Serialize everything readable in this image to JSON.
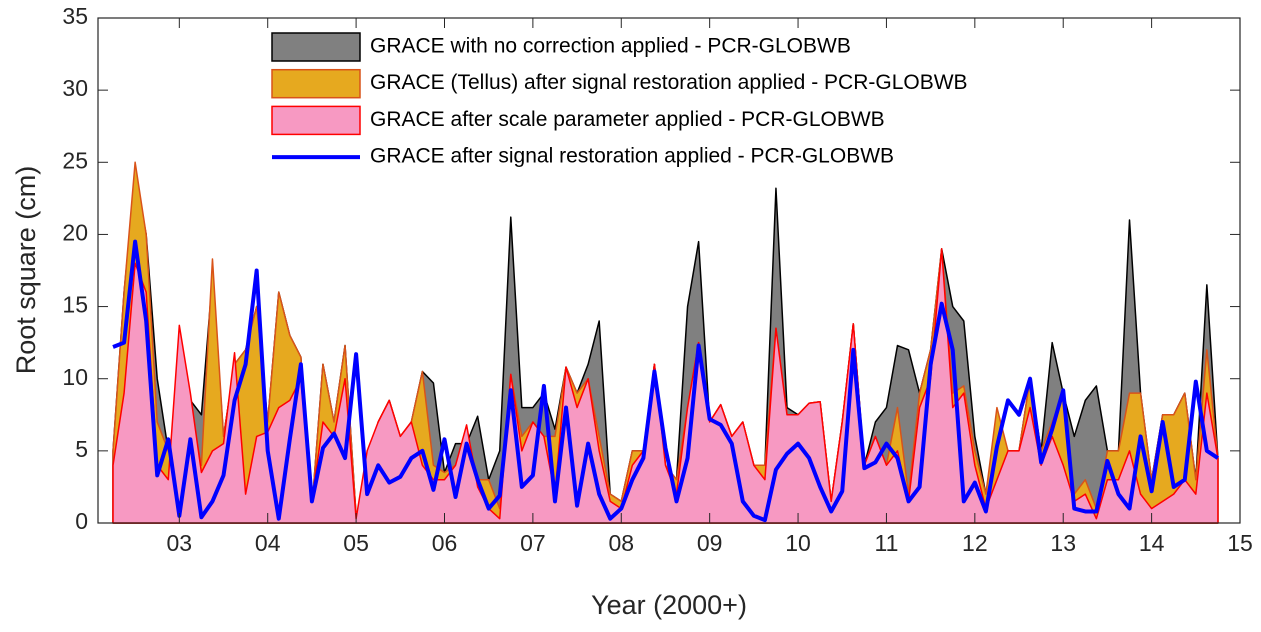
{
  "chart_data": {
    "type": "area",
    "xlabel": "Year (2000+)",
    "ylabel": "Root square (cm)",
    "xlim": [
      2.08,
      15
    ],
    "ylim": [
      0,
      35
    ],
    "xticks": [
      {
        "value": 3,
        "label": "03"
      },
      {
        "value": 4,
        "label": "04"
      },
      {
        "value": 5,
        "label": "05"
      },
      {
        "value": 6,
        "label": "06"
      },
      {
        "value": 7,
        "label": "07"
      },
      {
        "value": 8,
        "label": "08"
      },
      {
        "value": 9,
        "label": "09"
      },
      10,
      11,
      12,
      13,
      14,
      15
    ],
    "yticks": [
      0,
      5,
      10,
      15,
      20,
      25,
      30,
      35
    ],
    "legend": "upper center",
    "x": [
      2.25,
      2.375,
      2.5,
      2.625,
      2.75,
      2.875,
      3.0,
      3.125,
      3.25,
      3.375,
      3.5,
      3.625,
      3.75,
      3.875,
      4.0,
      4.125,
      4.25,
      4.375,
      4.5,
      4.625,
      4.75,
      4.875,
      5.0,
      5.125,
      5.25,
      5.375,
      5.5,
      5.625,
      5.75,
      5.875,
      6.0,
      6.125,
      6.25,
      6.375,
      6.5,
      6.625,
      6.75,
      6.875,
      7.0,
      7.125,
      7.25,
      7.375,
      7.5,
      7.625,
      7.75,
      7.875,
      8.0,
      8.125,
      8.25,
      8.375,
      8.5,
      8.625,
      8.75,
      8.875,
      9.0,
      9.125,
      9.25,
      9.375,
      9.5,
      9.625,
      9.75,
      9.875,
      10.0,
      10.125,
      10.25,
      10.375,
      10.5,
      10.625,
      10.75,
      10.875,
      11.0,
      11.125,
      11.25,
      11.375,
      11.5,
      11.625,
      11.75,
      11.875,
      12.0,
      12.125,
      12.25,
      12.375,
      12.5,
      12.625,
      12.75,
      12.875,
      13.0,
      13.125,
      13.25,
      13.375,
      13.5,
      13.625,
      13.75,
      13.875,
      14.0,
      14.125,
      14.25,
      14.375,
      14.5,
      14.625,
      14.75
    ],
    "series": [
      {
        "name": "GRACE with no correction applied - PCR-GLOBWB",
        "kind": "area",
        "color": "#808080",
        "edgecolor": "#000000",
        "values": [
          5,
          16,
          24,
          20,
          10,
          5,
          8,
          8.5,
          7.5,
          17,
          6,
          11,
          12,
          15,
          7,
          16,
          13,
          11.5,
          1,
          11,
          7,
          12.3,
          0.5,
          3,
          7,
          8.5,
          6,
          7,
          10.5,
          9.7,
          3.5,
          5.5,
          5.5,
          7.4,
          3,
          5,
          21.2,
          8,
          8,
          9,
          6.5,
          10.8,
          9,
          11,
          14,
          2,
          1.5,
          5,
          5,
          11,
          4,
          3,
          15,
          19.5,
          7,
          8.2,
          6,
          7,
          4,
          4,
          23.2,
          8,
          7.5,
          8.3,
          8.4,
          1.5,
          7,
          13.8,
          4,
          7,
          8,
          12.3,
          12,
          9,
          12,
          19,
          15,
          14,
          6,
          2,
          7,
          5,
          5,
          10,
          5,
          12.5,
          9,
          6,
          8.5,
          9.5,
          5,
          5,
          21,
          9,
          3,
          7.5,
          7.5,
          9,
          3,
          16.5,
          4.5
        ]
      },
      {
        "name": "GRACE (Tellus) after signal restoration applied - PCR-GLOBWB",
        "kind": "area",
        "color": "#e6a91f",
        "edgecolor": "#d95319",
        "values": [
          5,
          16,
          25,
          20,
          7,
          5,
          4,
          8,
          4,
          18.3,
          6,
          11,
          12,
          15,
          7,
          16,
          13,
          11.5,
          1,
          11,
          7,
          12.3,
          0.5,
          3,
          7,
          8.5,
          6,
          7,
          10.5,
          4,
          3.5,
          4,
          6.5,
          3,
          3,
          1,
          10.3,
          6,
          7,
          6,
          6,
          10.8,
          9,
          10,
          6,
          2,
          1.5,
          5,
          5,
          11,
          4,
          3,
          8,
          12.5,
          7,
          8.2,
          6,
          7,
          4,
          4,
          13.5,
          7.5,
          7.5,
          8.3,
          8.4,
          1.5,
          7,
          13.8,
          4,
          6,
          4,
          8,
          2,
          9,
          12,
          19,
          9,
          9.5,
          5,
          2,
          8,
          5,
          5,
          10,
          5,
          7,
          9,
          2,
          3,
          1,
          5,
          5,
          9,
          9,
          3,
          7.5,
          7.5,
          9,
          3,
          12,
          4.5
        ]
      },
      {
        "name": "GRACE after scale parameter applied - PCR-GLOBWB",
        "kind": "area",
        "color": "#f799c2",
        "edgecolor": "#ff0000",
        "values": [
          4,
          9,
          18,
          16,
          4,
          3,
          13.7,
          9,
          3.5,
          5,
          5.5,
          11.8,
          2,
          6,
          6.3,
          8,
          8.5,
          10,
          1.5,
          7,
          6,
          10,
          0.3,
          5,
          7,
          8.5,
          6,
          7,
          4,
          3,
          3,
          4,
          6.8,
          2.5,
          1,
          0.3,
          10.3,
          5,
          7,
          6,
          2,
          10.8,
          8,
          10,
          5,
          1.5,
          1,
          4,
          5,
          11,
          4,
          2,
          8,
          12.5,
          7,
          8.2,
          6,
          7,
          4,
          3,
          13.5,
          7.5,
          7.5,
          8.3,
          8.4,
          1.5,
          7,
          13.8,
          4,
          6,
          4,
          5,
          1.5,
          8,
          10,
          19,
          8,
          9,
          4,
          1,
          3,
          5,
          5,
          8,
          4,
          6,
          4,
          1.5,
          2,
          0.3,
          3,
          3,
          5,
          2,
          1,
          1.5,
          2,
          3,
          2,
          9,
          4.5
        ]
      },
      {
        "name": "GRACE after signal restoration applied - PCR-GLOBWB",
        "kind": "line",
        "color": "#0000ff",
        "values": [
          12.2,
          12.5,
          19.5,
          14,
          3.3,
          5.8,
          0.5,
          5.8,
          0.4,
          1.5,
          3.3,
          8.5,
          11,
          17.5,
          5,
          0.3,
          5.8,
          11,
          1.5,
          5.2,
          6.2,
          4.5,
          11.7,
          2,
          4,
          2.8,
          3.2,
          4.5,
          5,
          2.3,
          5.8,
          1.8,
          5.5,
          3,
          1,
          1.9,
          9.2,
          2.5,
          3.3,
          9.5,
          1.5,
          8,
          1.2,
          5.5,
          2,
          0.3,
          1,
          3,
          4.5,
          10.5,
          5.2,
          1.5,
          4.5,
          12.3,
          7.2,
          6.8,
          5.5,
          1.5,
          0.5,
          0.2,
          3.7,
          4.8,
          5.5,
          4.5,
          2.5,
          0.8,
          2.2,
          12,
          3.8,
          4.2,
          5.5,
          4.5,
          1.5,
          2.5,
          11,
          15.2,
          12,
          1.5,
          2.8,
          0.8,
          5.3,
          8.5,
          7.5,
          10,
          4.2,
          6.5,
          9.2,
          1,
          0.8,
          0.8,
          4.3,
          2,
          1,
          6,
          2.2,
          7,
          2.5,
          3,
          9.8,
          5,
          4.5
        ]
      }
    ]
  }
}
